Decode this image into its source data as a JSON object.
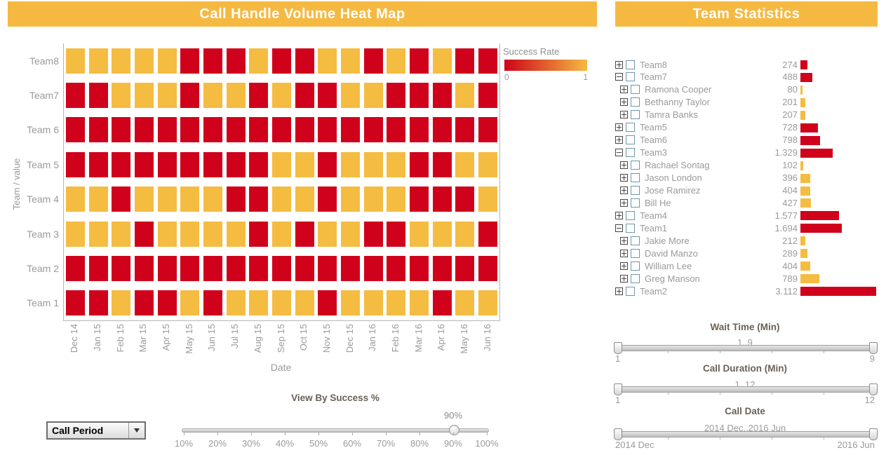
{
  "colors": {
    "accent_orange": "#f5b942",
    "accent_red": "#d0021b",
    "cell_low": "#d0021b",
    "cell_high": "#f5bc42"
  },
  "heatmap_panel": {
    "title": "Call Handle Volume Heat Map",
    "legend": {
      "title": "Success Rate",
      "min": "0",
      "max": "1"
    }
  },
  "chart_data": {
    "type": "heatmap",
    "title": "Call Handle Volume Heat Map",
    "xlabel": "Date",
    "ylabel": "Team / value",
    "legend": {
      "title": "Success Rate",
      "min": 0,
      "max": 1,
      "gradient": [
        "#ce0418",
        "#f5b942"
      ]
    },
    "x_categories": [
      "Dec 14",
      "Jan 15",
      "Feb 15",
      "Mar 15",
      "Apr 15",
      "May 15",
      "Jun 15",
      "Jul 15",
      "Aug 15",
      "Sep 15",
      "Oct 15",
      "Nov 15",
      "Dec 15",
      "Jan 16",
      "Feb 16",
      "Mar 16",
      "Apr 16",
      "May 16",
      "Jun 16"
    ],
    "y_categories": [
      "Team8",
      "Team7",
      "Team 6",
      "Team 5",
      "Team 4",
      "Team 3",
      "Team 2",
      "Team 1"
    ],
    "cell_legend": {
      "R": "low success (red)",
      "O": "high success (orange)"
    },
    "rows": [
      {
        "team": "Team8",
        "cells": [
          "O",
          "O",
          "O",
          "O",
          "O",
          "R",
          "R",
          "R",
          "O",
          "R",
          "R",
          "O",
          "O",
          "R",
          "O",
          "R",
          "O",
          "R",
          "R"
        ]
      },
      {
        "team": "Team7",
        "cells": [
          "R",
          "R",
          "O",
          "O",
          "O",
          "R",
          "O",
          "O",
          "R",
          "O",
          "R",
          "R",
          "O",
          "O",
          "R",
          "R",
          "R",
          "O",
          "R"
        ]
      },
      {
        "team": "Team 6",
        "cells": [
          "R",
          "R",
          "R",
          "R",
          "R",
          "R",
          "R",
          "R",
          "R",
          "R",
          "R",
          "R",
          "R",
          "R",
          "R",
          "R",
          "R",
          "R",
          "R"
        ]
      },
      {
        "team": "Team 5",
        "cells": [
          "R",
          "R",
          "R",
          "R",
          "R",
          "R",
          "R",
          "R",
          "R",
          "O",
          "O",
          "R",
          "O",
          "O",
          "O",
          "R",
          "R",
          "O",
          "O"
        ]
      },
      {
        "team": "Team 4",
        "cells": [
          "O",
          "O",
          "R",
          "O",
          "O",
          "O",
          "O",
          "R",
          "R",
          "O",
          "O",
          "R",
          "O",
          "O",
          "O",
          "R",
          "R",
          "R",
          "O"
        ]
      },
      {
        "team": "Team 3",
        "cells": [
          "O",
          "O",
          "O",
          "R",
          "O",
          "O",
          "O",
          "O",
          "R",
          "O",
          "R",
          "O",
          "O",
          "R",
          "R",
          "O",
          "O",
          "O",
          "R"
        ]
      },
      {
        "team": "Team 2",
        "cells": [
          "R",
          "R",
          "R",
          "R",
          "R",
          "R",
          "R",
          "R",
          "R",
          "R",
          "R",
          "R",
          "R",
          "R",
          "R",
          "R",
          "R",
          "R",
          "R"
        ]
      },
      {
        "team": "Team 1",
        "cells": [
          "R",
          "R",
          "O",
          "R",
          "R",
          "O",
          "R",
          "O",
          "O",
          "O",
          "O",
          "R",
          "O",
          "O",
          "O",
          "O",
          "R",
          "O",
          "O"
        ]
      }
    ]
  },
  "team_statistics": {
    "title": "Team Statistics",
    "max_value": 3112,
    "rows": [
      {
        "label": "Team8",
        "value": "274",
        "num": 274,
        "level": 0,
        "expand": "plus",
        "bar": "red"
      },
      {
        "label": "Team7",
        "value": "488",
        "num": 488,
        "level": 0,
        "expand": "minus",
        "bar": "red"
      },
      {
        "label": "Ramona Cooper",
        "value": "80",
        "num": 80,
        "level": 1,
        "expand": "plus",
        "bar": "orange"
      },
      {
        "label": "Bethanny Taylor",
        "value": "201",
        "num": 201,
        "level": 1,
        "expand": "plus",
        "bar": "orange"
      },
      {
        "label": "Tamra Banks",
        "value": "207",
        "num": 207,
        "level": 1,
        "expand": "plus",
        "bar": "orange"
      },
      {
        "label": "Team5",
        "value": "728",
        "num": 728,
        "level": 0,
        "expand": "plus",
        "bar": "red"
      },
      {
        "label": "Team6",
        "value": "798",
        "num": 798,
        "level": 0,
        "expand": "plus",
        "bar": "red"
      },
      {
        "label": "Team3",
        "value": "1.329",
        "num": 1329,
        "level": 0,
        "expand": "minus",
        "bar": "red"
      },
      {
        "label": "Rachael Sontag",
        "value": "102",
        "num": 102,
        "level": 1,
        "expand": "plus",
        "bar": "orange"
      },
      {
        "label": "Jason London",
        "value": "396",
        "num": 396,
        "level": 1,
        "expand": "plus",
        "bar": "orange"
      },
      {
        "label": "Jose Ramirez",
        "value": "404",
        "num": 404,
        "level": 1,
        "expand": "plus",
        "bar": "orange"
      },
      {
        "label": "Bill He",
        "value": "427",
        "num": 427,
        "level": 1,
        "expand": "plus",
        "bar": "orange"
      },
      {
        "label": "Team4",
        "value": "1.577",
        "num": 1577,
        "level": 0,
        "expand": "plus",
        "bar": "red"
      },
      {
        "label": "Team1",
        "value": "1.694",
        "num": 1694,
        "level": 0,
        "expand": "minus",
        "bar": "red"
      },
      {
        "label": "Jakie More",
        "value": "212",
        "num": 212,
        "level": 1,
        "expand": "plus",
        "bar": "orange"
      },
      {
        "label": "David Manzo",
        "value": "289",
        "num": 289,
        "level": 1,
        "expand": "plus",
        "bar": "orange"
      },
      {
        "label": "William Lee",
        "value": "404",
        "num": 404,
        "level": 1,
        "expand": "plus",
        "bar": "orange"
      },
      {
        "label": "Greg Manson",
        "value": "789",
        "num": 789,
        "level": 1,
        "expand": "plus",
        "bar": "orange"
      },
      {
        "label": "Team2",
        "value": "3.112",
        "num": 3112,
        "level": 0,
        "expand": "plus",
        "bar": "red"
      }
    ]
  },
  "range_sliders": [
    {
      "title": "Wait Time (Min)",
      "range_label": "1..9",
      "min_label": "1",
      "max_label": "9"
    },
    {
      "title": "Call Duration (Min)",
      "range_label": "1..12",
      "min_label": "1",
      "max_label": "12"
    },
    {
      "title": "Call Date",
      "range_label": "2014 Dec..2016 Jun",
      "min_label": "2014 Dec",
      "max_label": "2016 Jun"
    }
  ],
  "bottom_controls": {
    "dropdown_label": "Call Period",
    "success_slider": {
      "title": "View By Success %",
      "value_label": "90%",
      "value_pct": 90,
      "ticks": [
        "10%",
        "20%",
        "30%",
        "40%",
        "50%",
        "60%",
        "70%",
        "80%",
        "90%",
        "100%"
      ]
    }
  }
}
